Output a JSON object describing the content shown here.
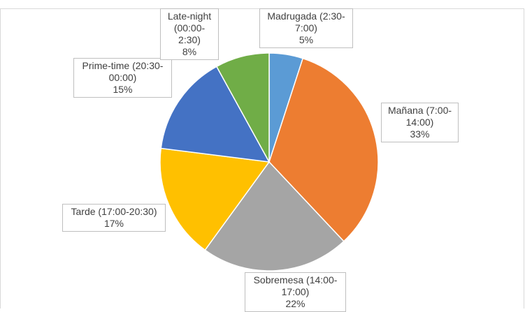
{
  "chart_data": {
    "type": "pie",
    "categories": [
      "Madrugada (2:30-7:00)",
      "Mañana (7:00-14:00)",
      "Sobremesa (14:00-17:00)",
      "Tarde (17:00-20:30)",
      "Prime-time (20:30-00:00)",
      "Late-night (00:00-2:30)"
    ],
    "values": [
      5,
      33,
      22,
      17,
      15,
      8
    ],
    "value_labels": [
      "5%",
      "33%",
      "22%",
      "17%",
      "15%",
      "8%"
    ],
    "colors": [
      "#5b9bd5",
      "#ed7d31",
      "#a5a5a5",
      "#ffc000",
      "#4472c4",
      "#70ad47"
    ]
  }
}
